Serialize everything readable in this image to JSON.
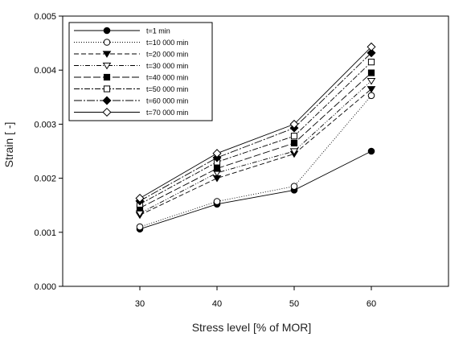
{
  "chart_data": {
    "type": "line",
    "title": "",
    "xlabel": "Stress level [% of MOR]",
    "ylabel": "Strain [ -]",
    "x": [
      30,
      40,
      50,
      60
    ],
    "x_ticks": [
      "30",
      "40",
      "50",
      "60"
    ],
    "xlim": [
      20,
      70
    ],
    "ylim": [
      0,
      0.005
    ],
    "y_ticks": [
      "0.000",
      "0.001",
      "0.002",
      "0.003",
      "0.004",
      "0.005"
    ],
    "grid": false,
    "legend_position": "top-left",
    "series": [
      {
        "name": "t=1 min",
        "values": [
          0.00106,
          0.00152,
          0.00178,
          0.0025
        ],
        "marker": "filled-circle",
        "dash": "solid"
      },
      {
        "name": "t=10 000 min",
        "values": [
          0.0011,
          0.00157,
          0.00185,
          0.00353
        ],
        "marker": "open-circle",
        "dash": "dotted"
      },
      {
        "name": "t=20 000 min",
        "values": [
          0.00132,
          0.002,
          0.00245,
          0.00365
        ],
        "marker": "filled-triangle-down",
        "dash": "dash"
      },
      {
        "name": "t=30 000 min",
        "values": [
          0.00135,
          0.0021,
          0.0025,
          0.0038
        ],
        "marker": "open-triangle-down",
        "dash": "dash-dot-dot"
      },
      {
        "name": "t=40 000 min",
        "values": [
          0.00145,
          0.00218,
          0.00265,
          0.00395
        ],
        "marker": "filled-square",
        "dash": "long-dash"
      },
      {
        "name": "t=50 000 min",
        "values": [
          0.00152,
          0.0023,
          0.00278,
          0.00415
        ],
        "marker": "open-square",
        "dash": "dash-dot"
      },
      {
        "name": "t=60 000 min",
        "values": [
          0.00158,
          0.00238,
          0.00293,
          0.00432
        ],
        "marker": "filled-diamond",
        "dash": "long-dash-dot"
      },
      {
        "name": "t=70 000 min",
        "values": [
          0.00163,
          0.00246,
          0.003,
          0.00443
        ],
        "marker": "open-diamond",
        "dash": "solid"
      }
    ]
  }
}
